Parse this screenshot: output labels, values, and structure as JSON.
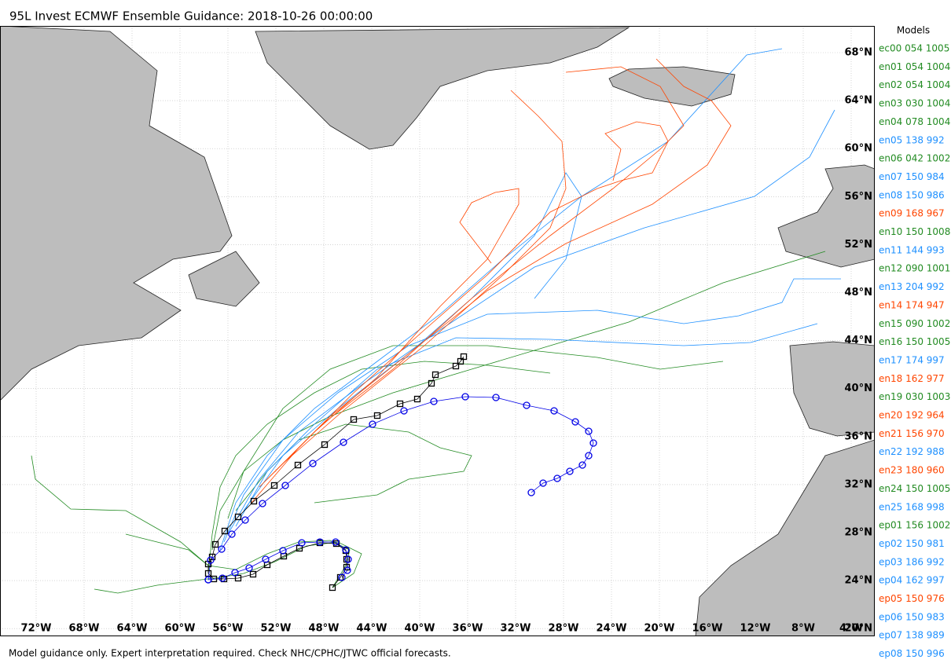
{
  "map": {
    "title": "95L Invest ECMWF Ensemble Guidance: 2018-10-26 00:00:00",
    "footer": "Model guidance only. Expert interpretation required. Check NHC/CPHC/JTWC official forecasts.",
    "lat_labels": [
      "68°N",
      "64°N",
      "60°N",
      "56°N",
      "52°N",
      "48°N",
      "44°N",
      "40°N",
      "36°N",
      "32°N",
      "28°N",
      "24°N",
      "20°N"
    ],
    "lon_labels": [
      "72°W",
      "68°W",
      "64°W",
      "60°W",
      "56°W",
      "52°W",
      "48°W",
      "44°W",
      "40°W",
      "36°W",
      "32°W",
      "28°W",
      "24°W",
      "20°W",
      "16°W",
      "12°W",
      "8°W",
      "4°W"
    ]
  },
  "legend": {
    "title": "Models",
    "items": [
      {
        "label": "ec00 054 1005",
        "color": "#228b22"
      },
      {
        "label": "en01 054 1004",
        "color": "#228b22"
      },
      {
        "label": "en02 054 1004",
        "color": "#228b22"
      },
      {
        "label": "en03 030 1004",
        "color": "#228b22"
      },
      {
        "label": "en04 078 1004",
        "color": "#228b22"
      },
      {
        "label": "en05 138 992",
        "color": "#1e90ff"
      },
      {
        "label": "en06 042 1002",
        "color": "#228b22"
      },
      {
        "label": "en07 150 984",
        "color": "#1e90ff"
      },
      {
        "label": "en08 150 986",
        "color": "#1e90ff"
      },
      {
        "label": "en09 168 967",
        "color": "#ff4500"
      },
      {
        "label": "en10 150 1008",
        "color": "#228b22"
      },
      {
        "label": "en11 144 993",
        "color": "#1e90ff"
      },
      {
        "label": "en12 090 1001",
        "color": "#228b22"
      },
      {
        "label": "en13 204 992",
        "color": "#1e90ff"
      },
      {
        "label": "en14 174 947",
        "color": "#ff4500"
      },
      {
        "label": "en15 090 1002",
        "color": "#228b22"
      },
      {
        "label": "en16 150 1005",
        "color": "#228b22"
      },
      {
        "label": "en17 174 997",
        "color": "#1e90ff"
      },
      {
        "label": "en18 162 977",
        "color": "#ff4500"
      },
      {
        "label": "en19 030 1003",
        "color": "#228b22"
      },
      {
        "label": "en20 192 964",
        "color": "#ff4500"
      },
      {
        "label": "en21 156 970",
        "color": "#ff4500"
      },
      {
        "label": "en22 192 988",
        "color": "#1e90ff"
      },
      {
        "label": "en23 180 960",
        "color": "#ff4500"
      },
      {
        "label": "en24 150 1005",
        "color": "#228b22"
      },
      {
        "label": "en25 168 998",
        "color": "#1e90ff"
      },
      {
        "label": "ep01 156 1002",
        "color": "#228b22"
      },
      {
        "label": "ep02 150 981",
        "color": "#1e90ff"
      },
      {
        "label": "ep03 186 992",
        "color": "#1e90ff"
      },
      {
        "label": "ep04 162 997",
        "color": "#1e90ff"
      },
      {
        "label": "ep05 150 976",
        "color": "#ff4500"
      },
      {
        "label": "ep06 150 983",
        "color": "#1e90ff"
      },
      {
        "label": "ep07 138 989",
        "color": "#1e90ff"
      },
      {
        "label": "ep08 150 996",
        "color": "#1e90ff"
      }
    ]
  }
}
